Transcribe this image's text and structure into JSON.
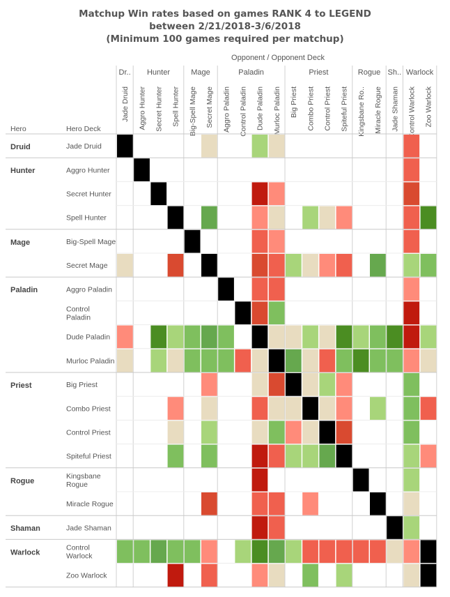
{
  "chart_data": {
    "type": "heatmap",
    "title": [
      "Matchup Win rates based on games RANK 4 to LEGEND",
      "between 2/21/2018-3/6/2018",
      "(Minimum 100 games required per matchup)"
    ],
    "column_header": "Opponent  /  Opponent Deck",
    "row_headers": [
      "Hero",
      "Hero Deck"
    ],
    "column_classes": [
      {
        "label": "Dr..",
        "span": 1
      },
      {
        "label": "Hunter",
        "span": 3
      },
      {
        "label": "Mage",
        "span": 2
      },
      {
        "label": "Paladin",
        "span": 4
      },
      {
        "label": "Priest",
        "span": 4
      },
      {
        "label": "Rogue",
        "span": 2
      },
      {
        "label": "Sh..",
        "span": 1
      },
      {
        "label": "Warlock",
        "span": 2
      }
    ],
    "columns": [
      "Jade Druid",
      "Aggro Hunter",
      "Secret Hunter",
      "Spell Hunter",
      "Big-Spell Mage",
      "Secret Mage",
      "Aggro Paladin",
      "Control Paladin",
      "Dude Paladin",
      "Murloc Paladin",
      "Big Priest",
      "Combo Priest",
      "Control Priest",
      "Spiteful Priest",
      "Kingsbane Ro..",
      "Miracle Rogue",
      "Jade Shaman",
      "Control Warlock",
      "Zoo Warlock"
    ],
    "row_groups": [
      {
        "hero": "Druid",
        "decks": [
          [
            "Jade Druid"
          ]
        ]
      },
      {
        "hero": "Hunter",
        "decks": [
          [
            "Aggro Hunter"
          ],
          [
            "Secret Hunter"
          ],
          [
            "Spell Hunter"
          ]
        ]
      },
      {
        "hero": "Mage",
        "decks": [
          [
            "Big-Spell Mage"
          ],
          [
            "Secret Mage"
          ]
        ]
      },
      {
        "hero": "Paladin",
        "decks": [
          [
            "Aggro Paladin"
          ],
          [
            "Control",
            "Paladin"
          ],
          [
            "Dude Paladin"
          ],
          [
            "Murloc Paladin"
          ]
        ]
      },
      {
        "hero": "Priest",
        "decks": [
          [
            "Big Priest"
          ],
          [
            "Combo Priest"
          ],
          [
            "Control Priest"
          ],
          [
            "Spiteful Priest"
          ]
        ]
      },
      {
        "hero": "Rogue",
        "decks": [
          [
            "Kingsbane",
            "Rogue"
          ],
          [
            "Miracle Rogue"
          ]
        ]
      },
      {
        "hero": "Shaman",
        "decks": [
          [
            "Jade Shaman"
          ]
        ]
      },
      {
        "hero": "Warlock",
        "decks": [
          [
            "Control",
            "Warlock"
          ],
          [
            "Zoo Warlock"
          ]
        ]
      }
    ],
    "color_levels": {
      "X": "#000000",
      "E": "#e8dcc0",
      "L": "#a8d57a",
      "G": "#7fbf5e",
      "M": "#66a84e",
      "D": "#4b8d22",
      "P": "#ff8b7a",
      "S": "#f0604e",
      "R": "#d94a30",
      "K": "#c01a0e"
    },
    "color_legend": "cell color = matchup win rate class: X mirror, E even, L/G/M/D increasingly favored (green), P/S/R/K increasingly unfavored (red), empty = under 100 games",
    "cells": [
      "X....E..LE.......S.",
      ".X...............S.",
      "..X.....KP.......R.",
      "...X.M..PE.LEP...SD",
      "....X...SP.......S.",
      "E..R.X..RSLEPS.M.LG",
      "......X.SS.......P.",
      ".......XRG.......K.",
      "P.DLGMG.XEELEDLGDKL",
      "E.LEGGGSEXMESGDGGPE",
      ".....P..ERXELP...G.",
      "...P.E..SEEXEP.L.GS",
      "...E.L..EGPEXR...G.",
      "...G.G..KSLLMX...LP",
      "........K.....X..L.",
      ".....R..SS.P...X.E.",
      "........KS......XL.",
      "GGMGGP.LDMLSSSSSEPX",
      "...K.S..PE.G.L...EX"
    ]
  }
}
